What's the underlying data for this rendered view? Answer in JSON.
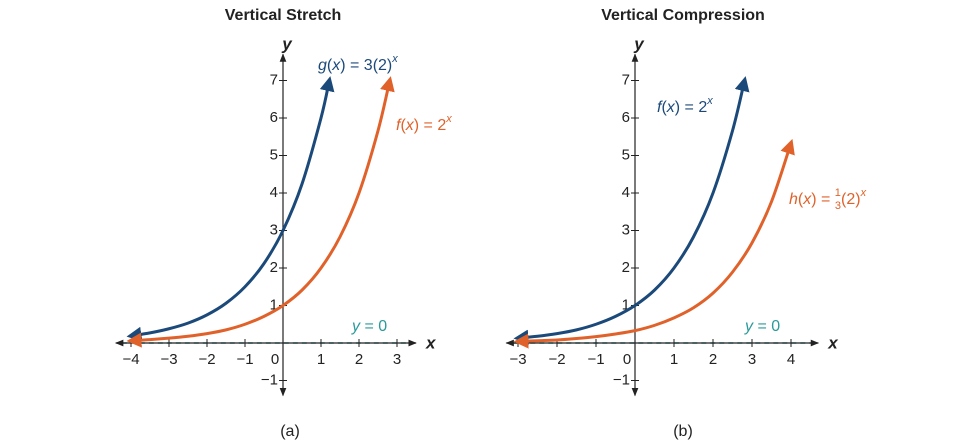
{
  "chart_data": [
    {
      "type": "line",
      "title": "Vertical Stretch",
      "caption": "(a)",
      "x_label": "x",
      "y_label": "y",
      "xlim": [
        -4.4,
        3.5
      ],
      "ylim": [
        -1.4,
        7.7
      ],
      "xticks": [
        {
          "value": -4,
          "label": "−4"
        },
        {
          "value": -3,
          "label": "−3"
        },
        {
          "value": -2,
          "label": "−2"
        },
        {
          "value": -1,
          "label": "−1"
        },
        0,
        1,
        2,
        3
      ],
      "yticks": [
        {
          "value": -1,
          "label": "−1"
        },
        1,
        2,
        3,
        4,
        5,
        6,
        7
      ],
      "asymptote": {
        "y": 0,
        "color": "#2a9a9a",
        "label": [
          {
            "text": "y",
            "style": "italic"
          },
          {
            "text": " = 0"
          }
        ]
      },
      "series": [
        {
          "color": "#1b4a7a",
          "label": [
            {
              "text": "g",
              "style": "italic"
            },
            {
              "text": "("
            },
            {
              "text": "x",
              "style": "italic"
            },
            {
              "text": ") = 3(2)"
            },
            {
              "text": "x",
              "style": "sup"
            }
          ],
          "x": [
            -4,
            -3.5,
            -3,
            -2.5,
            -2,
            -1.5,
            -1,
            -0.5,
            0,
            0.5,
            1,
            1.22
          ],
          "values": [
            0.19,
            0.27,
            0.38,
            0.53,
            0.75,
            1.06,
            1.5,
            2.12,
            3,
            4.24,
            6,
            7
          ]
        },
        {
          "color": "#e0622a",
          "label": [
            {
              "text": "f",
              "style": "italic"
            },
            {
              "text": "("
            },
            {
              "text": "x",
              "style": "italic"
            },
            {
              "text": ") = 2"
            },
            {
              "text": "x",
              "style": "sup"
            }
          ],
          "x": [
            -4,
            -3.5,
            -3,
            -2.5,
            -2,
            -1.5,
            -1,
            -0.5,
            0,
            0.5,
            1,
            1.5,
            2,
            2.5,
            2.81
          ],
          "values": [
            0.06,
            0.09,
            0.13,
            0.18,
            0.25,
            0.35,
            0.5,
            0.71,
            1,
            1.41,
            2,
            2.83,
            4,
            5.66,
            7
          ]
        }
      ]
    },
    {
      "type": "line",
      "title": "Vertical Compression",
      "caption": "(b)",
      "x_label": "x",
      "y_label": "y",
      "xlim": [
        -3.3,
        4.7
      ],
      "ylim": [
        -1.4,
        7.7
      ],
      "xticks": [
        {
          "value": -3,
          "label": "−3"
        },
        {
          "value": -2,
          "label": "−2"
        },
        {
          "value": -1,
          "label": "−1"
        },
        0,
        1,
        2,
        3,
        4
      ],
      "yticks": [
        {
          "value": -1,
          "label": "−1"
        },
        1,
        2,
        3,
        4,
        5,
        6,
        7
      ],
      "asymptote": {
        "y": 0,
        "color": "#2a9a9a",
        "label": [
          {
            "text": "y",
            "style": "italic"
          },
          {
            "text": " = 0"
          }
        ]
      },
      "series": [
        {
          "color": "#1b4a7a",
          "label": [
            {
              "text": "f",
              "style": "italic"
            },
            {
              "text": "("
            },
            {
              "text": "x",
              "style": "italic"
            },
            {
              "text": ") = 2"
            },
            {
              "text": "x",
              "style": "sup"
            }
          ],
          "x": [
            -3,
            -2.5,
            -2,
            -1.5,
            -1,
            -0.5,
            0,
            0.5,
            1,
            1.5,
            2,
            2.5,
            2.81
          ],
          "values": [
            0.13,
            0.18,
            0.25,
            0.35,
            0.5,
            0.71,
            1,
            1.41,
            2,
            2.83,
            4,
            5.66,
            7
          ]
        },
        {
          "color": "#e0622a",
          "label": [
            {
              "text": "h",
              "style": "italic"
            },
            {
              "text": "("
            },
            {
              "text": "x",
              "style": "italic"
            },
            {
              "text": ") = "
            },
            {
              "num": "1",
              "den": "3",
              "style": "frac"
            },
            {
              "text": "(2)"
            },
            {
              "text": "x",
              "style": "sup"
            }
          ],
          "x": [
            -3,
            -2.5,
            -2,
            -1.5,
            -1,
            -0.5,
            0,
            0.5,
            1,
            1.5,
            2,
            2.5,
            3,
            3.5,
            4
          ],
          "values": [
            0.04,
            0.06,
            0.08,
            0.12,
            0.17,
            0.24,
            0.33,
            0.47,
            0.67,
            0.94,
            1.33,
            1.89,
            2.67,
            3.77,
            5.33
          ]
        }
      ]
    }
  ]
}
